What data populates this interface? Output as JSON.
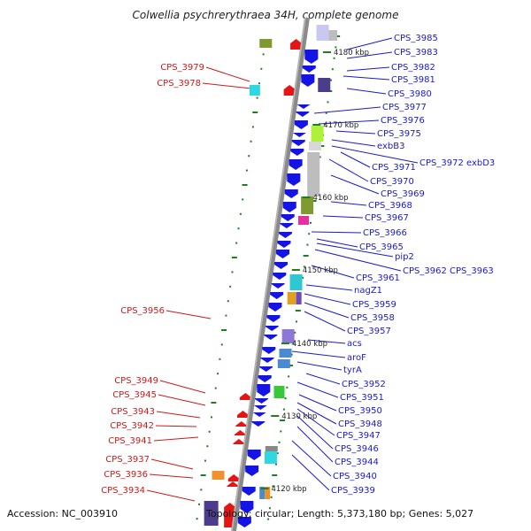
{
  "title": "Colwellia psychrerythraea 34H, complete genome",
  "accession": "Accession: NC_003910",
  "topology": "Topology: circular; Length: 5,373,180 bp; Genes: 5,027",
  "colors": {
    "forward_label": "#1a1acc",
    "reverse_label": "#cc1a1a",
    "backbone": "#8a8a8a",
    "tick": "#1e7f1e",
    "forward_gene": "#1414e6",
    "reverse_gene": "#e61414"
  },
  "kbp_markers": [
    "4180 kbp",
    "4170 kbp",
    "4160 kbp",
    "4150 kbp",
    "4140 kbp",
    "4130 kbp",
    "4120 kbp"
  ],
  "right_labels": [
    "CPS_3985",
    "CPS_3983",
    "CPS_3982",
    "CPS_3981",
    "CPS_3980",
    "CPS_3977",
    "CPS_3976",
    "CPS_3975",
    "exbB3",
    "CPS_3972 exbD3",
    "CPS_3971",
    "CPS_3970",
    "CPS_3969",
    "CPS_3968",
    "CPS_3967",
    "CPS_3966",
    "CPS_3965",
    "pip2",
    "CPS_3962 CPS_3963",
    "CPS_3961",
    "nagZ1",
    "CPS_3959",
    "CPS_3958",
    "CPS_3957",
    "acs",
    "aroF",
    "tyrA",
    "CPS_3952",
    "CPS_3951",
    "CPS_3950",
    "CPS_3948",
    "CPS_3947",
    "CPS_3946",
    "CPS_3944",
    "CPS_3940",
    "CPS_3939"
  ],
  "left_labels": [
    "CPS_3979",
    "CPS_3978",
    "CPS_3956",
    "CPS_3949",
    "CPS_3945",
    "CPS_3943",
    "CPS_3942",
    "CPS_3941",
    "CPS_3937",
    "CPS_3936",
    "CPS_3934"
  ]
}
